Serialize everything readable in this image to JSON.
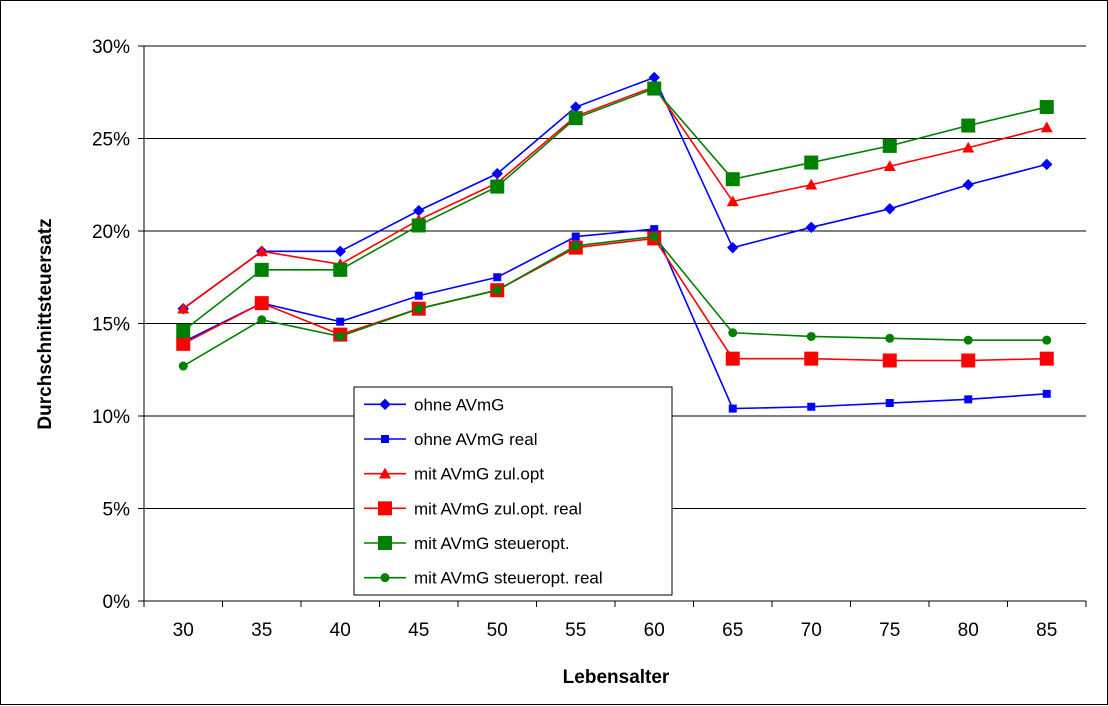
{
  "chart_data": {
    "type": "line",
    "title": "",
    "xlabel": "Lebensalter",
    "ylabel": "Durchschnittsteuersatz",
    "categories": [
      "30",
      "35",
      "40",
      "45",
      "50",
      "55",
      "60",
      "65",
      "70",
      "75",
      "80",
      "85"
    ],
    "ylim": [
      0,
      30
    ],
    "yticks": [
      0,
      5,
      10,
      15,
      20,
      25,
      30
    ],
    "ytick_labels": [
      "0%",
      "5%",
      "10%",
      "15%",
      "20%",
      "25%",
      "30%"
    ],
    "grid": "horizontal",
    "legend_position": "center-left",
    "series": [
      {
        "name": "ohne AVmG",
        "color": "#0000ff",
        "marker": "diamond",
        "values": [
          15.8,
          18.9,
          18.9,
          21.1,
          23.1,
          26.7,
          28.3,
          19.1,
          20.2,
          21.2,
          22.5,
          23.6
        ]
      },
      {
        "name": "ohne AVmG real",
        "color": "#0000ff",
        "marker": "square-small",
        "values": [
          14.0,
          16.1,
          15.1,
          16.5,
          17.5,
          19.7,
          20.1,
          10.4,
          10.5,
          10.7,
          10.9,
          11.2
        ]
      },
      {
        "name": "mit AVmG zul.opt",
        "color": "#ff0000",
        "marker": "triangle",
        "values": [
          15.8,
          18.9,
          18.2,
          20.6,
          22.6,
          26.2,
          27.8,
          21.6,
          22.5,
          23.5,
          24.5,
          25.6
        ]
      },
      {
        "name": "mit AVmG zul.opt. real",
        "color": "#ff0000",
        "marker": "square-large",
        "values": [
          13.9,
          16.1,
          14.4,
          15.8,
          16.8,
          19.1,
          19.6,
          13.1,
          13.1,
          13.0,
          13.0,
          13.1
        ]
      },
      {
        "name": "mit AVmG steueropt.",
        "color": "#008000",
        "marker": "square-large",
        "values": [
          14.6,
          17.9,
          17.9,
          20.3,
          22.4,
          26.1,
          27.7,
          22.8,
          23.7,
          24.6,
          25.7,
          26.7
        ]
      },
      {
        "name": "mit AVmG steueropt. real",
        "color": "#008000",
        "marker": "circle",
        "values": [
          12.7,
          15.2,
          14.3,
          15.8,
          16.8,
          19.2,
          19.7,
          14.5,
          14.3,
          14.2,
          14.1,
          14.1
        ]
      }
    ]
  }
}
